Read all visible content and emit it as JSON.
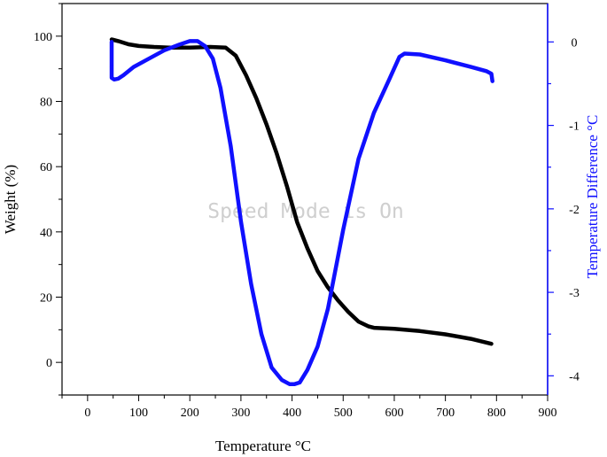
{
  "watermark": "Speed Mode is On",
  "chart_data": {
    "type": "line",
    "xlabel": "Temperature °C",
    "ylabel": "Weight (%)",
    "y2label": "Temperature Difference °C",
    "xlim": [
      -50,
      900
    ],
    "ylim": [
      -10,
      110
    ],
    "y2lim": [
      -4.23,
      0.46
    ],
    "x_ticks": [
      0,
      100,
      200,
      300,
      400,
      500,
      600,
      700,
      800,
      900
    ],
    "y_ticks": [
      0,
      20,
      40,
      60,
      80,
      100
    ],
    "y2_ticks": [
      0,
      -1,
      -2,
      -3,
      -4
    ],
    "colors": {
      "weight": "#000000",
      "temp_diff": "#1010ff",
      "right_axis": "#1010ff"
    },
    "series": [
      {
        "axis": "left",
        "color": "#000000",
        "x": [
          47,
          60,
          80,
          100,
          130,
          160,
          200,
          240,
          270,
          290,
          310,
          330,
          350,
          370,
          390,
          410,
          430,
          450,
          470,
          490,
          510,
          530,
          550,
          560,
          600,
          650,
          700,
          750,
          790
        ],
        "y": [
          99,
          98.5,
          97.5,
          97,
          96.7,
          96.5,
          96.5,
          96.7,
          96.5,
          94,
          88,
          81,
          73,
          64,
          54,
          43,
          35,
          28,
          23,
          19,
          15.5,
          12.5,
          11,
          10.6,
          10.3,
          9.6,
          8.6,
          7.2,
          5.7
        ]
      },
      {
        "axis": "right",
        "color": "#1010ff",
        "x": [
          47,
          47,
          47,
          47,
          52,
          60,
          70,
          90,
          120,
          150,
          180,
          200,
          215,
          230,
          245,
          260,
          280,
          300,
          320,
          340,
          360,
          380,
          395,
          405,
          415,
          430,
          450,
          470,
          500,
          530,
          560,
          590,
          610,
          620,
          650,
          700,
          750,
          780,
          790,
          792
        ],
        "y": [
          0,
          -0.3,
          -0.38,
          -0.43,
          -0.45,
          -0.44,
          -0.4,
          -0.3,
          -0.2,
          -0.1,
          -0.03,
          0.01,
          0.01,
          -0.05,
          -0.2,
          -0.55,
          -1.25,
          -2.15,
          -2.9,
          -3.5,
          -3.9,
          -4.05,
          -4.1,
          -4.1,
          -4.08,
          -3.93,
          -3.65,
          -3.2,
          -2.25,
          -1.4,
          -0.85,
          -0.45,
          -0.18,
          -0.14,
          -0.15,
          -0.22,
          -0.3,
          -0.35,
          -0.38,
          -0.47
        ]
      }
    ]
  }
}
